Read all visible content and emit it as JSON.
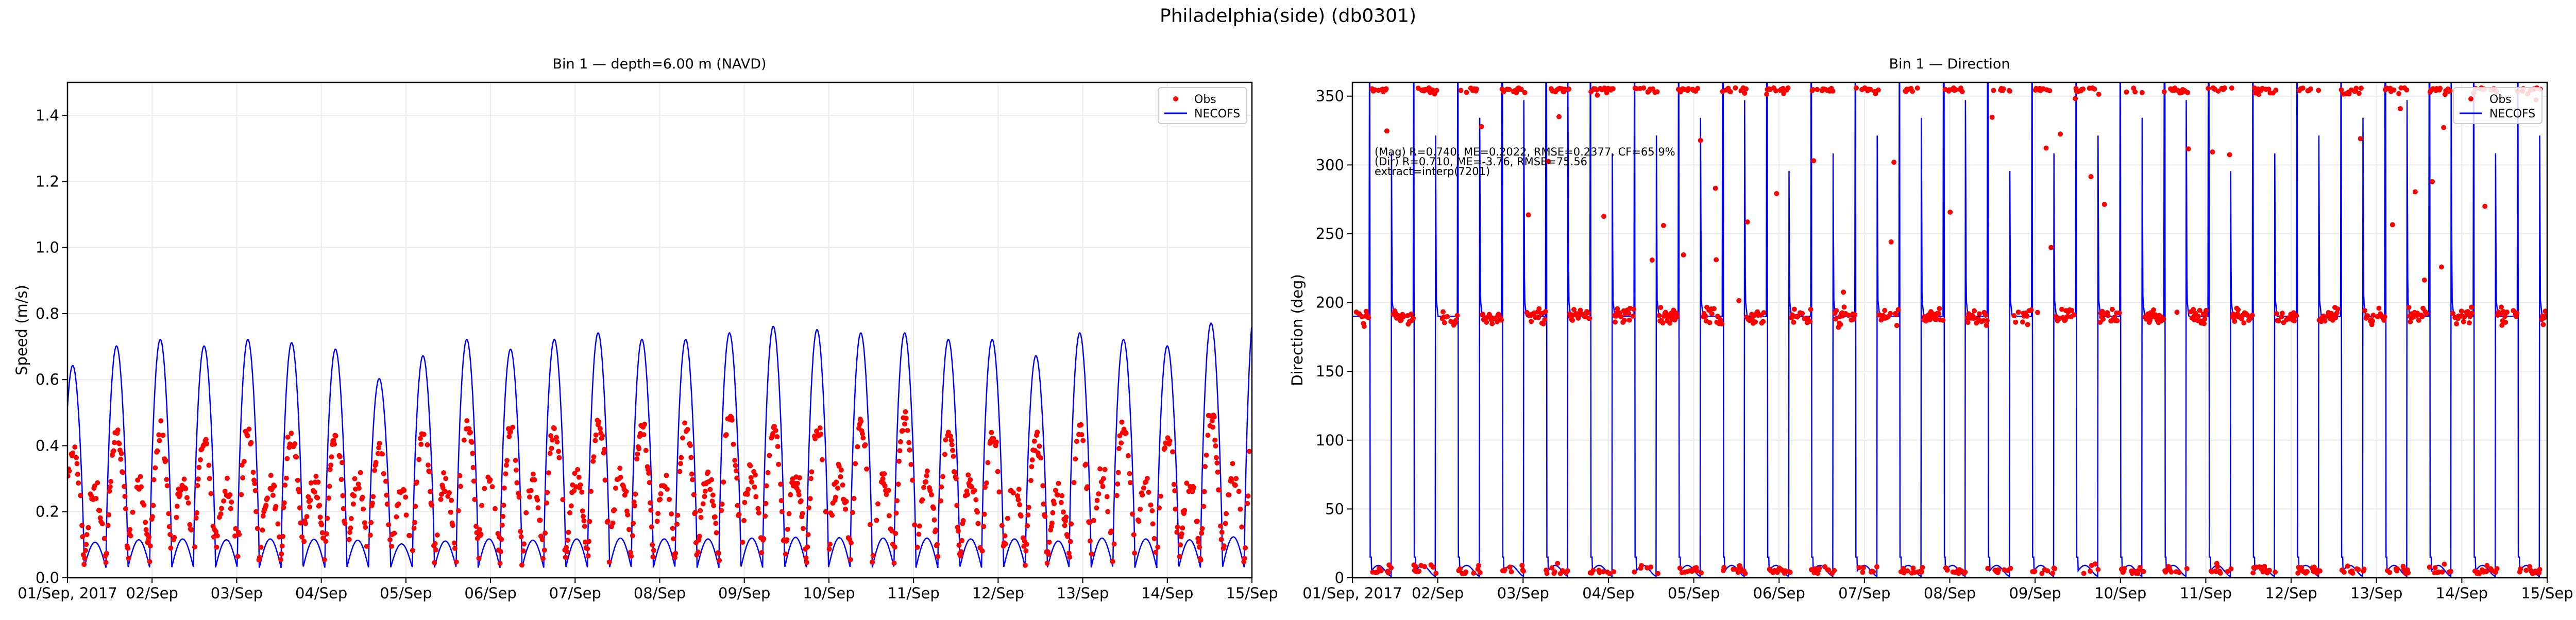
{
  "figure_title": "Philadelphia(side) (db0301)",
  "chart_data": [
    {
      "type": "line",
      "title": "Bin 1 — depth=6.00 m (NAVD)",
      "xlabel": "",
      "ylabel": "Speed (m/s)",
      "ylim": [
        0,
        1.5
      ],
      "yticks": [
        "0.0",
        "0.2",
        "0.4",
        "0.6",
        "0.8",
        "1.0",
        "1.2",
        "1.4"
      ],
      "ytick_values": [
        0,
        0.2,
        0.4,
        0.6,
        0.8,
        1.0,
        1.2,
        1.4
      ],
      "xticks": [
        "01/Sep, 2017",
        "02/Sep",
        "03/Sep",
        "04/Sep",
        "05/Sep",
        "06/Sep",
        "07/Sep",
        "08/Sep",
        "09/Sep",
        "10/Sep",
        "11/Sep",
        "12/Sep",
        "13/Sep",
        "14/Sep",
        "15/Sep"
      ],
      "xlim_hours": [
        0,
        336
      ],
      "grid": true,
      "legend": {
        "placement": "top-right",
        "entries": [
          "Obs",
          "NECOFS"
        ]
      },
      "tidal_period_hours": 12.42,
      "series": [
        {
          "name": "NECOFS",
          "style": "line",
          "color": "#0000ff",
          "cycle_peaks": [
            0.62,
            0.68,
            0.7,
            0.68,
            0.7,
            0.69,
            0.67,
            0.58,
            0.65,
            0.7,
            0.67,
            0.7,
            0.72,
            0.7,
            0.7,
            0.72,
            0.74,
            0.73,
            0.72,
            0.72,
            0.7,
            0.7,
            0.65,
            0.72,
            0.7,
            0.68,
            0.75,
            0.8,
            0.75
          ]
        },
        {
          "name": "Obs",
          "style": "scatter",
          "color": "#ff0000",
          "cycle_peaks": [
            0.4,
            0.45,
            0.45,
            0.42,
            0.45,
            0.44,
            0.45,
            0.4,
            0.45,
            0.5,
            0.45,
            0.47,
            0.5,
            0.48,
            0.48,
            0.5,
            0.48,
            0.47,
            0.48,
            0.5,
            0.47,
            0.45,
            0.42,
            0.47,
            0.48,
            0.45,
            0.5,
            0.5,
            0.5
          ]
        }
      ]
    },
    {
      "type": "line",
      "title": "Bin 1 — Direction",
      "xlabel": "",
      "ylabel": "Direction (deg)",
      "ylim": [
        0,
        360
      ],
      "yticks": [
        "0",
        "50",
        "100",
        "150",
        "200",
        "250",
        "300",
        "350"
      ],
      "ytick_values": [
        0,
        50,
        100,
        150,
        200,
        250,
        300,
        350
      ],
      "xticks": [
        "01/Sep, 2017",
        "02/Sep",
        "03/Sep",
        "04/Sep",
        "05/Sep",
        "06/Sep",
        "07/Sep",
        "08/Sep",
        "09/Sep",
        "10/Sep",
        "11/Sep",
        "12/Sep",
        "13/Sep",
        "14/Sep",
        "15/Sep"
      ],
      "xlim_hours": [
        0,
        336
      ],
      "grid": true,
      "legend": {
        "placement": "top-right",
        "entries": [
          "Obs",
          "NECOFS"
        ]
      },
      "flood_direction_deg": 190,
      "ebb_direction_deg": 5,
      "annotation": [
        "(Mag) R=0.740, ME=0.2022, RMSE=0.2377, CF=65.9%",
        "(Dir) R=0.710, ME=-3.76, RMSE=75.56",
        "extract=interp(7201)"
      ],
      "series": [
        {
          "name": "NECOFS",
          "style": "line",
          "color": "#0000ff"
        },
        {
          "name": "Obs",
          "style": "scatter",
          "color": "#ff0000"
        }
      ]
    }
  ]
}
